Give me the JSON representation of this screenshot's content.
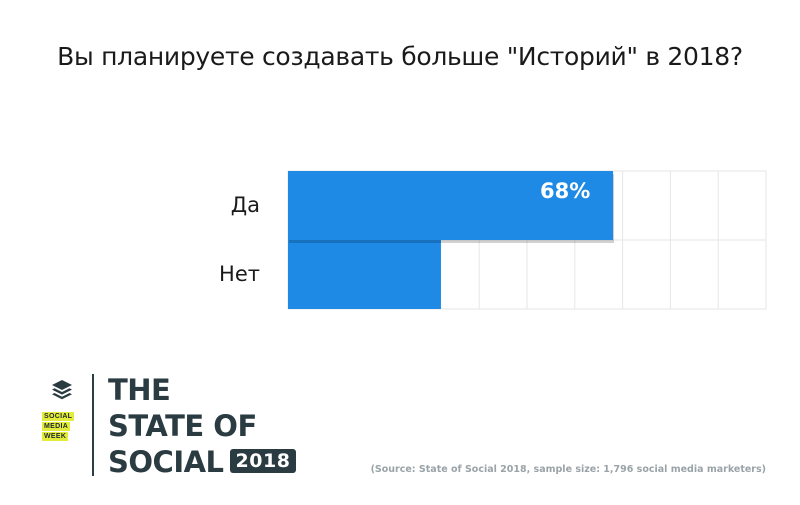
{
  "chart_data": {
    "type": "bar",
    "orientation": "horizontal",
    "title": "Вы планируете создавать больше \"Историй\" в 2018?",
    "categories": [
      "Да",
      "Нет"
    ],
    "values": [
      68,
      32
    ],
    "data_labels": [
      "68%",
      ""
    ],
    "xlim": [
      0,
      100
    ],
    "grid": true,
    "legend": "none",
    "bar_color": "#1e8ae6",
    "grid_color": "#e6e6e6"
  },
  "brand": {
    "line1": "THE",
    "line2": "STATE OF",
    "line3": "SOCIAL",
    "year": "2018",
    "badge_lines": [
      "SOCIAL",
      "MEDIA",
      "WEEK"
    ],
    "badge_color": "#e4ec3a",
    "brand_color": "#2a3b42"
  },
  "source": "(Source: State of Social 2018, sample size: 1,796 social media marketers)"
}
